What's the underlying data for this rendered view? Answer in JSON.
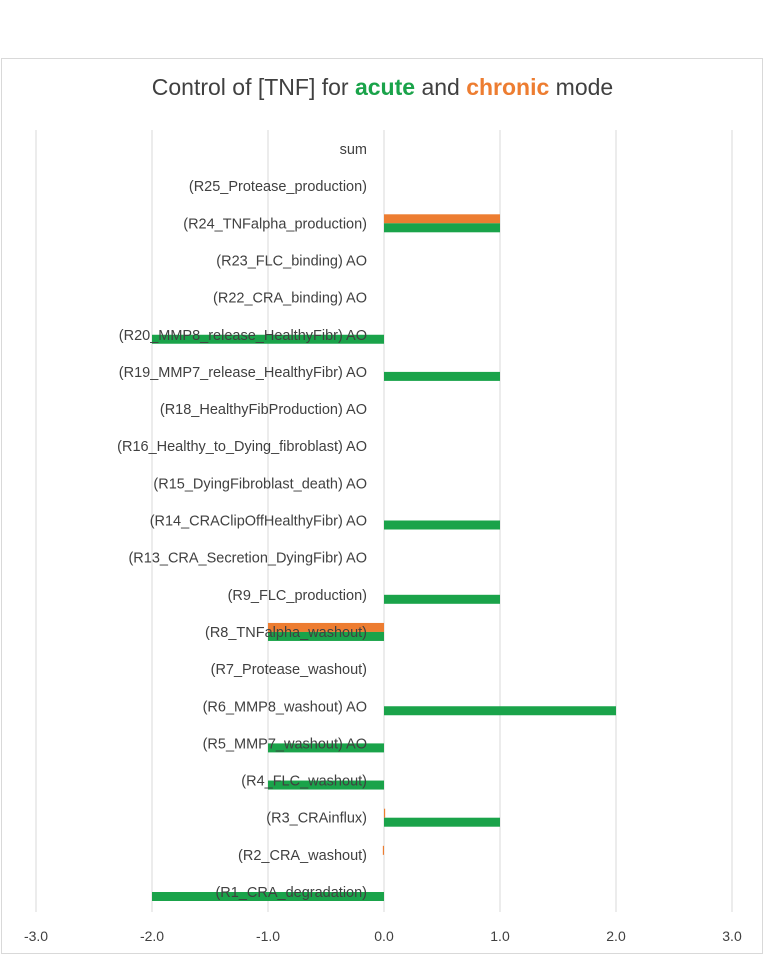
{
  "title": {
    "part1": "Control of [TNF] for ",
    "acute": "acute",
    "part2": " and ",
    "chronic": "chronic",
    "part3": " mode"
  },
  "colors": {
    "acute": "#1aa34a",
    "chronic": "#ed7d31",
    "grid": "#d9d9d9",
    "text": "#404040"
  },
  "chart_data": {
    "type": "bar",
    "orientation": "horizontal",
    "categories": [
      "sum",
      "(R25_Protease_production)",
      "(R24_TNFalpha_production)",
      "(R23_FLC_binding) AO",
      "(R22_CRA_binding) AO",
      "(R20_MMP8_release_HealthyFibr) AO",
      "(R19_MMP7_release_HealthyFibr) AO",
      "(R18_HealthyFibProduction) AO",
      "(R16_Healthy_to_Dying_fibroblast) AO",
      "(R15_DyingFibroblast_death) AO",
      "(R14_CRAClipOffHealthyFibr) AO",
      "(R13_CRA_Secretion_DyingFibr) AO",
      "(R9_FLC_production)",
      "(R8_TNFalpha_washout)",
      "(R7_Protease_washout)",
      "(R6_MMP8_washout) AO",
      "(R5_MMP7_washout) AO",
      "(R4_FLC_washout)",
      "(R3_CRAinflux)",
      "(R2_CRA_washout)",
      "(R1_CRA_degradation)"
    ],
    "series": [
      {
        "name": "acute",
        "values": [
          0,
          0,
          1,
          0,
          0,
          -2,
          1,
          0,
          0,
          0,
          1,
          0,
          1,
          -1,
          0,
          2,
          -1,
          -1,
          1,
          0,
          -2
        ]
      },
      {
        "name": "chronic",
        "values": [
          0,
          0,
          1,
          0,
          0,
          0,
          0,
          0,
          0,
          0,
          0,
          0,
          0,
          -1,
          0,
          0,
          0,
          0,
          0.01,
          -0.01,
          0
        ]
      }
    ],
    "xticks": [
      "-3.0",
      "-2.0",
      "-1.0",
      "0.0",
      "1.0",
      "2.0",
      "3.0"
    ],
    "xlim": [
      -3,
      3
    ],
    "grid": true,
    "legend": "none"
  }
}
